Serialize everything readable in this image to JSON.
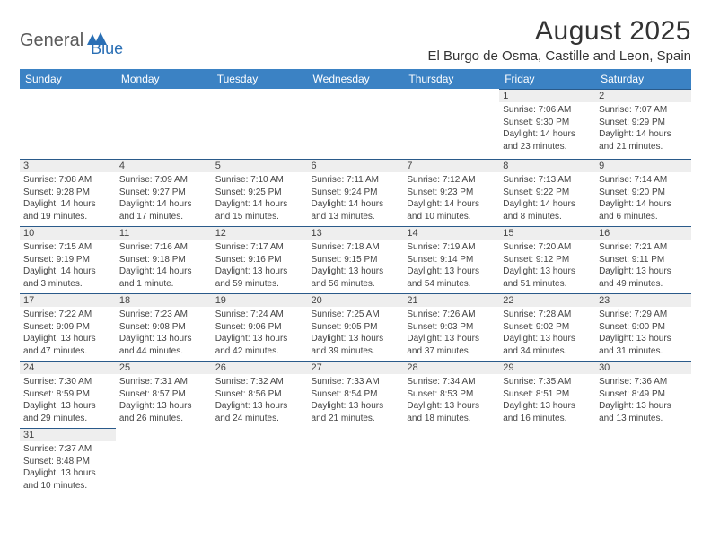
{
  "logo": {
    "text1": "General",
    "text2": "Blue"
  },
  "title": "August 2025",
  "location": "El Burgo de Osma, Castille and Leon, Spain",
  "colors": {
    "header_bg": "#3b82c4",
    "header_text": "#ffffff",
    "daynum_bg": "#eeeeee",
    "daynum_border": "#2a5a8a",
    "body_text": "#444444",
    "logo_gray": "#5a5a5a",
    "logo_blue": "#2a6fb5"
  },
  "fonts": {
    "title_size": 30,
    "location_size": 15,
    "header_size": 12,
    "daynum_size": 11,
    "info_size": 10
  },
  "day_headers": [
    "Sunday",
    "Monday",
    "Tuesday",
    "Wednesday",
    "Thursday",
    "Friday",
    "Saturday"
  ],
  "weeks": [
    [
      null,
      null,
      null,
      null,
      null,
      {
        "n": "1",
        "sr": "Sunrise: 7:06 AM",
        "ss": "Sunset: 9:30 PM",
        "d1": "Daylight: 14 hours",
        "d2": "and 23 minutes."
      },
      {
        "n": "2",
        "sr": "Sunrise: 7:07 AM",
        "ss": "Sunset: 9:29 PM",
        "d1": "Daylight: 14 hours",
        "d2": "and 21 minutes."
      }
    ],
    [
      {
        "n": "3",
        "sr": "Sunrise: 7:08 AM",
        "ss": "Sunset: 9:28 PM",
        "d1": "Daylight: 14 hours",
        "d2": "and 19 minutes."
      },
      {
        "n": "4",
        "sr": "Sunrise: 7:09 AM",
        "ss": "Sunset: 9:27 PM",
        "d1": "Daylight: 14 hours",
        "d2": "and 17 minutes."
      },
      {
        "n": "5",
        "sr": "Sunrise: 7:10 AM",
        "ss": "Sunset: 9:25 PM",
        "d1": "Daylight: 14 hours",
        "d2": "and 15 minutes."
      },
      {
        "n": "6",
        "sr": "Sunrise: 7:11 AM",
        "ss": "Sunset: 9:24 PM",
        "d1": "Daylight: 14 hours",
        "d2": "and 13 minutes."
      },
      {
        "n": "7",
        "sr": "Sunrise: 7:12 AM",
        "ss": "Sunset: 9:23 PM",
        "d1": "Daylight: 14 hours",
        "d2": "and 10 minutes."
      },
      {
        "n": "8",
        "sr": "Sunrise: 7:13 AM",
        "ss": "Sunset: 9:22 PM",
        "d1": "Daylight: 14 hours",
        "d2": "and 8 minutes."
      },
      {
        "n": "9",
        "sr": "Sunrise: 7:14 AM",
        "ss": "Sunset: 9:20 PM",
        "d1": "Daylight: 14 hours",
        "d2": "and 6 minutes."
      }
    ],
    [
      {
        "n": "10",
        "sr": "Sunrise: 7:15 AM",
        "ss": "Sunset: 9:19 PM",
        "d1": "Daylight: 14 hours",
        "d2": "and 3 minutes."
      },
      {
        "n": "11",
        "sr": "Sunrise: 7:16 AM",
        "ss": "Sunset: 9:18 PM",
        "d1": "Daylight: 14 hours",
        "d2": "and 1 minute."
      },
      {
        "n": "12",
        "sr": "Sunrise: 7:17 AM",
        "ss": "Sunset: 9:16 PM",
        "d1": "Daylight: 13 hours",
        "d2": "and 59 minutes."
      },
      {
        "n": "13",
        "sr": "Sunrise: 7:18 AM",
        "ss": "Sunset: 9:15 PM",
        "d1": "Daylight: 13 hours",
        "d2": "and 56 minutes."
      },
      {
        "n": "14",
        "sr": "Sunrise: 7:19 AM",
        "ss": "Sunset: 9:14 PM",
        "d1": "Daylight: 13 hours",
        "d2": "and 54 minutes."
      },
      {
        "n": "15",
        "sr": "Sunrise: 7:20 AM",
        "ss": "Sunset: 9:12 PM",
        "d1": "Daylight: 13 hours",
        "d2": "and 51 minutes."
      },
      {
        "n": "16",
        "sr": "Sunrise: 7:21 AM",
        "ss": "Sunset: 9:11 PM",
        "d1": "Daylight: 13 hours",
        "d2": "and 49 minutes."
      }
    ],
    [
      {
        "n": "17",
        "sr": "Sunrise: 7:22 AM",
        "ss": "Sunset: 9:09 PM",
        "d1": "Daylight: 13 hours",
        "d2": "and 47 minutes."
      },
      {
        "n": "18",
        "sr": "Sunrise: 7:23 AM",
        "ss": "Sunset: 9:08 PM",
        "d1": "Daylight: 13 hours",
        "d2": "and 44 minutes."
      },
      {
        "n": "19",
        "sr": "Sunrise: 7:24 AM",
        "ss": "Sunset: 9:06 PM",
        "d1": "Daylight: 13 hours",
        "d2": "and 42 minutes."
      },
      {
        "n": "20",
        "sr": "Sunrise: 7:25 AM",
        "ss": "Sunset: 9:05 PM",
        "d1": "Daylight: 13 hours",
        "d2": "and 39 minutes."
      },
      {
        "n": "21",
        "sr": "Sunrise: 7:26 AM",
        "ss": "Sunset: 9:03 PM",
        "d1": "Daylight: 13 hours",
        "d2": "and 37 minutes."
      },
      {
        "n": "22",
        "sr": "Sunrise: 7:28 AM",
        "ss": "Sunset: 9:02 PM",
        "d1": "Daylight: 13 hours",
        "d2": "and 34 minutes."
      },
      {
        "n": "23",
        "sr": "Sunrise: 7:29 AM",
        "ss": "Sunset: 9:00 PM",
        "d1": "Daylight: 13 hours",
        "d2": "and 31 minutes."
      }
    ],
    [
      {
        "n": "24",
        "sr": "Sunrise: 7:30 AM",
        "ss": "Sunset: 8:59 PM",
        "d1": "Daylight: 13 hours",
        "d2": "and 29 minutes."
      },
      {
        "n": "25",
        "sr": "Sunrise: 7:31 AM",
        "ss": "Sunset: 8:57 PM",
        "d1": "Daylight: 13 hours",
        "d2": "and 26 minutes."
      },
      {
        "n": "26",
        "sr": "Sunrise: 7:32 AM",
        "ss": "Sunset: 8:56 PM",
        "d1": "Daylight: 13 hours",
        "d2": "and 24 minutes."
      },
      {
        "n": "27",
        "sr": "Sunrise: 7:33 AM",
        "ss": "Sunset: 8:54 PM",
        "d1": "Daylight: 13 hours",
        "d2": "and 21 minutes."
      },
      {
        "n": "28",
        "sr": "Sunrise: 7:34 AM",
        "ss": "Sunset: 8:53 PM",
        "d1": "Daylight: 13 hours",
        "d2": "and 18 minutes."
      },
      {
        "n": "29",
        "sr": "Sunrise: 7:35 AM",
        "ss": "Sunset: 8:51 PM",
        "d1": "Daylight: 13 hours",
        "d2": "and 16 minutes."
      },
      {
        "n": "30",
        "sr": "Sunrise: 7:36 AM",
        "ss": "Sunset: 8:49 PM",
        "d1": "Daylight: 13 hours",
        "d2": "and 13 minutes."
      }
    ],
    [
      {
        "n": "31",
        "sr": "Sunrise: 7:37 AM",
        "ss": "Sunset: 8:48 PM",
        "d1": "Daylight: 13 hours",
        "d2": "and 10 minutes."
      },
      null,
      null,
      null,
      null,
      null,
      null
    ]
  ]
}
